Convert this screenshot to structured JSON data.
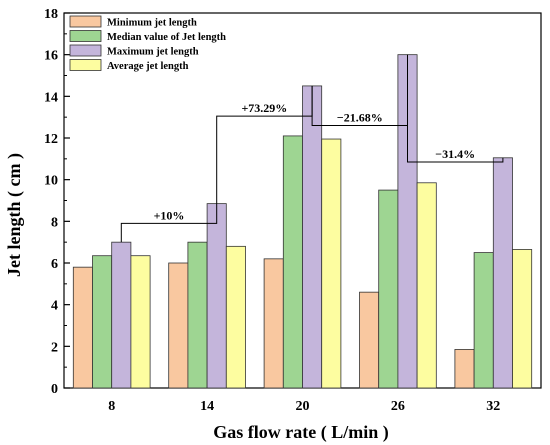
{
  "chart_data": {
    "type": "bar",
    "xlabel": "Gas flow rate ( L/min )",
    "ylabel": "Jet length ( cm )",
    "ylim": [
      0,
      18
    ],
    "yticks": [
      0,
      2,
      4,
      6,
      8,
      10,
      12,
      14,
      16,
      18
    ],
    "categories": [
      "8",
      "14",
      "20",
      "26",
      "32"
    ],
    "series": [
      {
        "name": "Minimum jet length",
        "color": "#f9c8a0",
        "values": [
          5.8,
          6.0,
          6.2,
          4.6,
          1.85
        ]
      },
      {
        "name": "Median value of Jet length",
        "color": "#9ed592",
        "values": [
          6.35,
          7.0,
          12.1,
          9.5,
          6.5
        ]
      },
      {
        "name": "Maximum jet length",
        "color": "#c4b5db",
        "values": [
          7.0,
          8.85,
          14.5,
          16.0,
          11.05
        ]
      },
      {
        "name": "Average jet length",
        "color": "#fdfda0",
        "values": [
          6.35,
          6.8,
          11.95,
          9.85,
          6.65
        ]
      }
    ],
    "legend_position": "top-left",
    "grid": false,
    "annotations": [
      {
        "text": "+10%",
        "from_category": 0,
        "to_category": 1,
        "level": 7.9
      },
      {
        "text": "+73.29%",
        "from_category": 1,
        "to_category": 2,
        "level": 13.05
      },
      {
        "text": "−21.68%",
        "from_category": 2,
        "to_category": 3,
        "level": 12.6
      },
      {
        "text": "−31.4%",
        "from_category": 3,
        "to_category": 4,
        "level": 10.85
      }
    ]
  }
}
